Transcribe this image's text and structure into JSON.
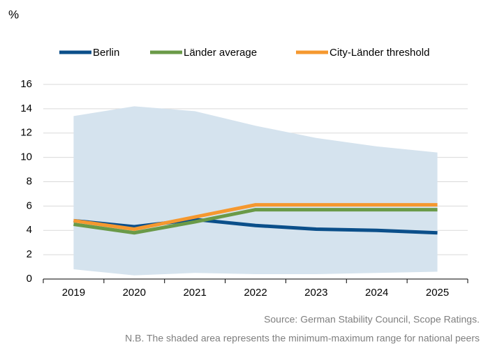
{
  "chart_data": {
    "type": "line",
    "y_label": "%",
    "categories": [
      "2019",
      "2020",
      "2021",
      "2022",
      "2023",
      "2024",
      "2025"
    ],
    "series": [
      {
        "name": "Berlin",
        "color": "#0b4f8a",
        "values": [
          4.8,
          4.3,
          4.9,
          4.4,
          4.1,
          4.0,
          3.8
        ]
      },
      {
        "name": "Länder average",
        "color": "#6a9a48",
        "values": [
          4.5,
          3.8,
          4.7,
          5.7,
          5.7,
          5.7,
          5.7
        ]
      },
      {
        "name": "City-Länder threshold",
        "color": "#f5982f",
        "values": [
          4.8,
          4.1,
          5.1,
          6.1,
          6.1,
          6.1,
          6.1
        ]
      }
    ],
    "range": {
      "color": "#d5e3ee",
      "max": [
        13.4,
        14.2,
        13.8,
        12.6,
        11.6,
        10.9,
        10.4
      ],
      "min": [
        0.8,
        0.3,
        0.5,
        0.4,
        0.4,
        0.5,
        0.6
      ]
    },
    "ylim": [
      0,
      16
    ],
    "yticks": [
      0,
      2,
      4,
      6,
      8,
      10,
      12,
      14,
      16
    ],
    "grid": true,
    "legend": "top",
    "source": "Source: German Stability Council, Scope Ratings.",
    "note": "N.B. The shaded area represents the minimum-maximum range for national peers"
  }
}
